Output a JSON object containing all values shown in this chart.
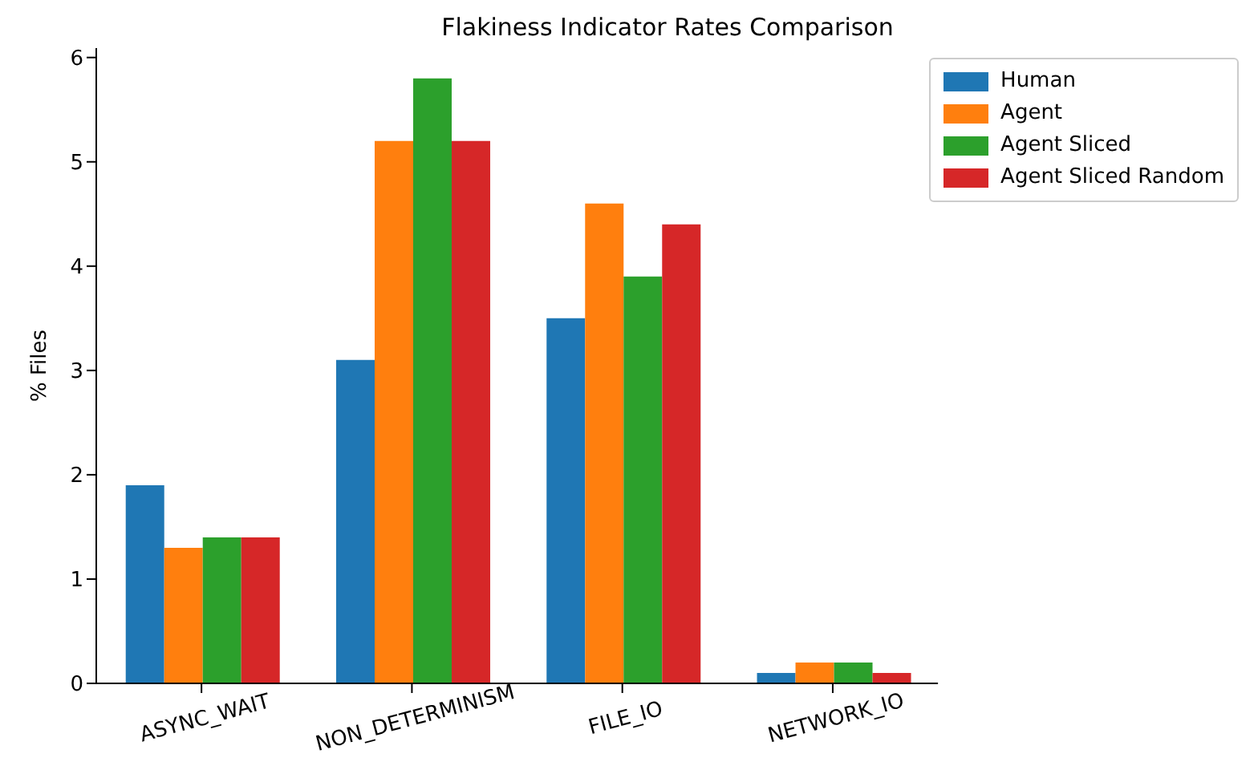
{
  "chart_data": {
    "type": "bar",
    "title": "Flakiness Indicator Rates Comparison",
    "ylabel": "% Files",
    "categories": [
      "ASYNC_WAIT",
      "NON_DETERMINISM",
      "FILE_IO",
      "NETWORK_IO"
    ],
    "series": [
      {
        "name": "Human",
        "color": "#1f77b4",
        "values": [
          1.9,
          3.1,
          3.5,
          0.1
        ]
      },
      {
        "name": "Agent",
        "color": "#ff7f0e",
        "values": [
          1.3,
          5.2,
          4.6,
          0.2
        ]
      },
      {
        "name": "Agent Sliced",
        "color": "#2ca02c",
        "values": [
          1.4,
          5.8,
          3.9,
          0.2
        ]
      },
      {
        "name": "Agent Sliced Random",
        "color": "#d62728",
        "values": [
          1.4,
          5.2,
          4.4,
          0.1
        ]
      }
    ],
    "ylim": [
      0,
      6.09
    ],
    "yticks": [
      0,
      1,
      2,
      3,
      4,
      5,
      6
    ],
    "grid": false,
    "legend": "top right"
  }
}
